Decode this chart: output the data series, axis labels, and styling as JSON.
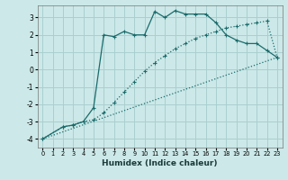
{
  "xlabel": "Humidex (Indice chaleur)",
  "bg_color": "#cce8e8",
  "grid_color": "#aacfcf",
  "line_color": "#1a6b6b",
  "xlim": [
    -0.5,
    23.5
  ],
  "ylim": [
    -4.5,
    3.7
  ],
  "xticks": [
    0,
    1,
    2,
    3,
    4,
    5,
    6,
    7,
    8,
    9,
    10,
    11,
    12,
    13,
    14,
    15,
    16,
    17,
    18,
    19,
    20,
    21,
    22,
    23
  ],
  "yticks": [
    -4,
    -3,
    -2,
    -1,
    0,
    1,
    2,
    3
  ],
  "line1_x": [
    0,
    2,
    3,
    4,
    5,
    6,
    7,
    8,
    9,
    10,
    11,
    12,
    13,
    14,
    15,
    16,
    17,
    18,
    19,
    20,
    21,
    22,
    23
  ],
  "line1_y": [
    -4.0,
    -3.3,
    -3.2,
    -3.0,
    -2.2,
    2.0,
    1.9,
    2.2,
    2.0,
    2.0,
    3.35,
    3.0,
    3.4,
    3.2,
    3.2,
    3.2,
    2.7,
    2.0,
    1.7,
    1.5,
    1.5,
    1.1,
    0.7
  ],
  "line2_x": [
    0,
    2,
    3,
    4,
    5,
    6,
    7,
    8,
    9,
    10,
    11,
    12,
    13,
    14,
    15,
    16,
    17,
    18,
    19,
    20,
    21,
    22,
    23
  ],
  "line2_y": [
    -4.0,
    -3.3,
    -3.2,
    -3.0,
    -2.9,
    -2.5,
    -1.9,
    -1.3,
    -0.7,
    -0.1,
    0.4,
    0.8,
    1.2,
    1.5,
    1.8,
    2.0,
    2.2,
    2.4,
    2.5,
    2.6,
    2.7,
    2.8,
    0.7
  ],
  "line3_x": [
    0,
    23
  ],
  "line3_y": [
    -4.0,
    0.7
  ]
}
